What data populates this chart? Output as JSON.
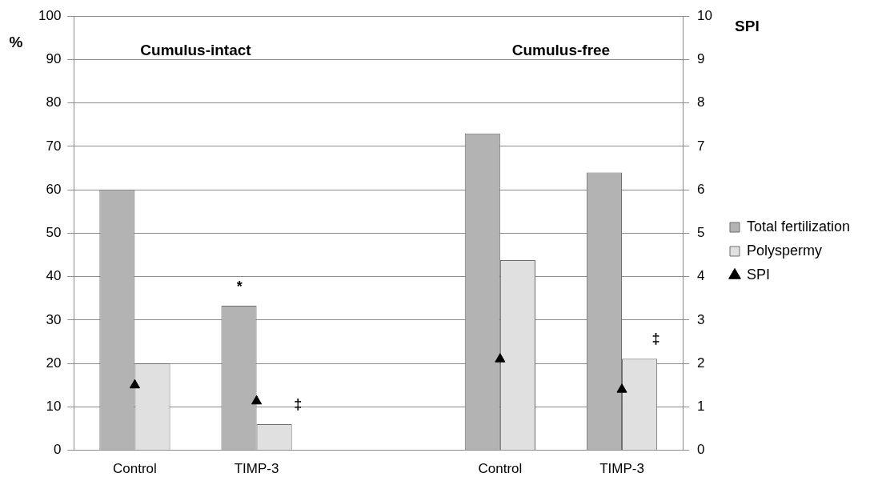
{
  "chart_data": {
    "type": "bar",
    "categories": [
      "Control",
      "TIMP-3",
      null,
      "Control",
      "TIMP-3"
    ],
    "series": [
      {
        "name": "Total fertilization",
        "color": "#b3b3b3",
        "values": [
          60,
          33.3,
          null,
          73,
          64
        ]
      },
      {
        "name": "Polyspermy",
        "color": "#e0e0e0",
        "values": [
          20,
          6,
          null,
          43.8,
          21.1
        ]
      },
      {
        "name": "SPI",
        "type": "scatter",
        "axis": "y2",
        "marker": "triangle",
        "color": "#000000",
        "values": [
          1.5,
          1.13,
          null,
          2.1,
          1.4
        ]
      }
    ],
    "ylabel": "%",
    "y2label": "SPI",
    "ylim": [
      0,
      100
    ],
    "yticks": [
      0,
      10,
      20,
      30,
      40,
      50,
      60,
      70,
      80,
      90,
      100
    ],
    "y2lim": [
      0,
      10
    ],
    "y2ticks": [
      0,
      1,
      2,
      3,
      4,
      5,
      6,
      7,
      8,
      9,
      10
    ],
    "grid": "y",
    "legend": "right",
    "annotations": [
      "Cumulus-intact",
      "Cumulus-free",
      "*",
      "‡",
      "‡"
    ]
  }
}
